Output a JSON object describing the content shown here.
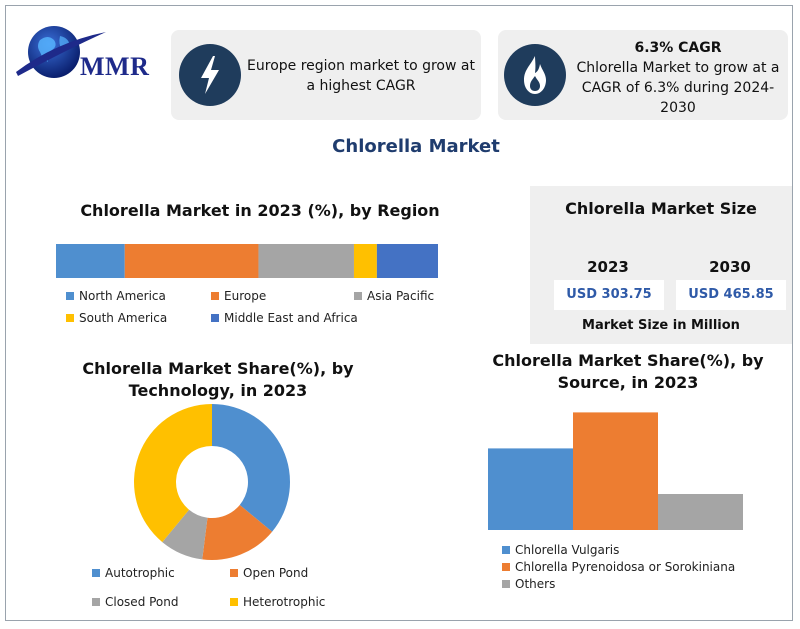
{
  "brand": {
    "logo_text": "MMR"
  },
  "cards": {
    "left": {
      "text_line1": "Europe  region market  to grow at",
      "text_line2": "a highest  CAGR",
      "icon": "lightning-icon"
    },
    "right": {
      "heading": "6.3% CAGR",
      "text_line1": "Chlorella Market to grow at a",
      "text_line2": "CAGR of 6.3% during 2024-2030",
      "icon": "flame-icon"
    }
  },
  "main_title": "Chlorella Market",
  "colors": {
    "blue": "#4f8fcf",
    "orange": "#ed7d31",
    "gray": "#a5a5a5",
    "yellow": "#ffc000",
    "dark_blue": "#4472c4",
    "navy": "#1f3c5c"
  },
  "market_size": {
    "title": "Chlorella Market Size",
    "year_a": "2023",
    "value_a": "USD 303.75",
    "year_b": "2030",
    "value_b": "USD 465.85",
    "footer": "Market Size in Million"
  },
  "chart_data": [
    {
      "type": "bar",
      "title": "Chlorella Market in 2023 (%), by Region",
      "orientation": "horizontal-stacked",
      "series": [
        {
          "name": "North America",
          "values": [
            18
          ]
        },
        {
          "name": "Europe",
          "values": [
            35
          ]
        },
        {
          "name": "Asia Pacific",
          "values": [
            25
          ]
        },
        {
          "name": "South America",
          "values": [
            6
          ]
        },
        {
          "name": "Middle East and Africa",
          "values": [
            16
          ]
        }
      ],
      "legend": "bottom"
    },
    {
      "type": "pie",
      "title_line1": "Chlorella Market Share(%), by",
      "title_line2": "Technology, in 2023",
      "donut": true,
      "categories": [
        "Autotrophic",
        "Open Pond",
        "Closed Pond",
        "Heterotrophic"
      ],
      "values": [
        36,
        16,
        9,
        39
      ],
      "legend": "bottom"
    },
    {
      "type": "bar",
      "title_line1": "Chlorella Market Share(%), by",
      "title_line2": "Source, in 2023",
      "categories": [
        "Chlorella Vulgaris",
        "Chlorella Pyrenoidosa or Sorokiniana",
        "Others"
      ],
      "values": [
        34,
        49,
        15
      ],
      "ylim": [
        0,
        50
      ],
      "legend": "bottom"
    }
  ]
}
